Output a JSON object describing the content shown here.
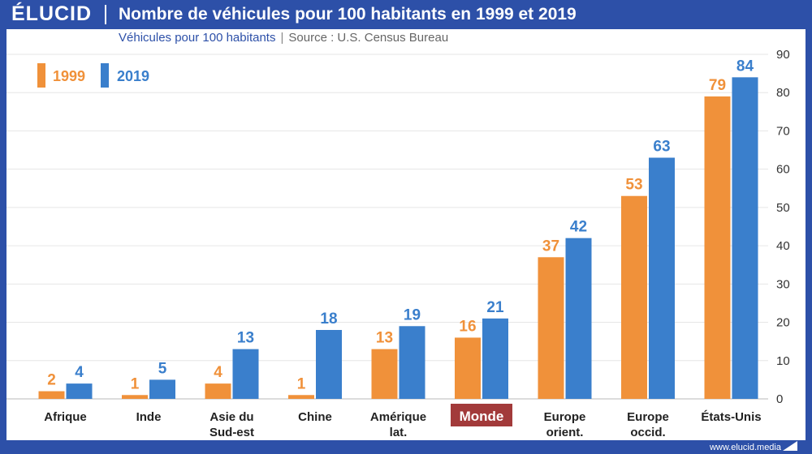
{
  "header": {
    "logo": "ÉLUCID",
    "title": "Nombre de véhicules pour 100 habitants en 1999 et 2019"
  },
  "subtitle": {
    "units": "Véhicules pour 100 habitants",
    "separator": "|",
    "source": "Source : U.S. Census Bureau"
  },
  "footer": {
    "site": "www.elucid.media"
  },
  "colors": {
    "series1999": "#f0913a",
    "series2019": "#3a7fcc",
    "brand": "#2d50a8",
    "highlight": "#a23a3a"
  },
  "chart_data": {
    "type": "bar",
    "title": "Nombre de véhicules pour 100 habitants en 1999 et 2019",
    "xlabel": "",
    "ylabel": "Véhicules pour 100 habitants",
    "ylim": [
      0,
      90
    ],
    "yticks": [
      0,
      10,
      20,
      30,
      40,
      50,
      60,
      70,
      80,
      90
    ],
    "grid": true,
    "legend_position": "top-left",
    "highlighted_category": "Monde",
    "categories": [
      [
        "Afrique"
      ],
      [
        "Inde"
      ],
      [
        "Asie du",
        "Sud-est"
      ],
      [
        "Chine"
      ],
      [
        "Amérique",
        "lat."
      ],
      [
        "Monde"
      ],
      [
        "Europe",
        "orient."
      ],
      [
        "Europe",
        "occid."
      ],
      [
        "États-Unis"
      ]
    ],
    "series": [
      {
        "name": "1999",
        "values": [
          2,
          1,
          4,
          1,
          13,
          16,
          37,
          53,
          79
        ]
      },
      {
        "name": "2019",
        "values": [
          4,
          5,
          13,
          18,
          19,
          21,
          42,
          63,
          84
        ]
      }
    ]
  }
}
